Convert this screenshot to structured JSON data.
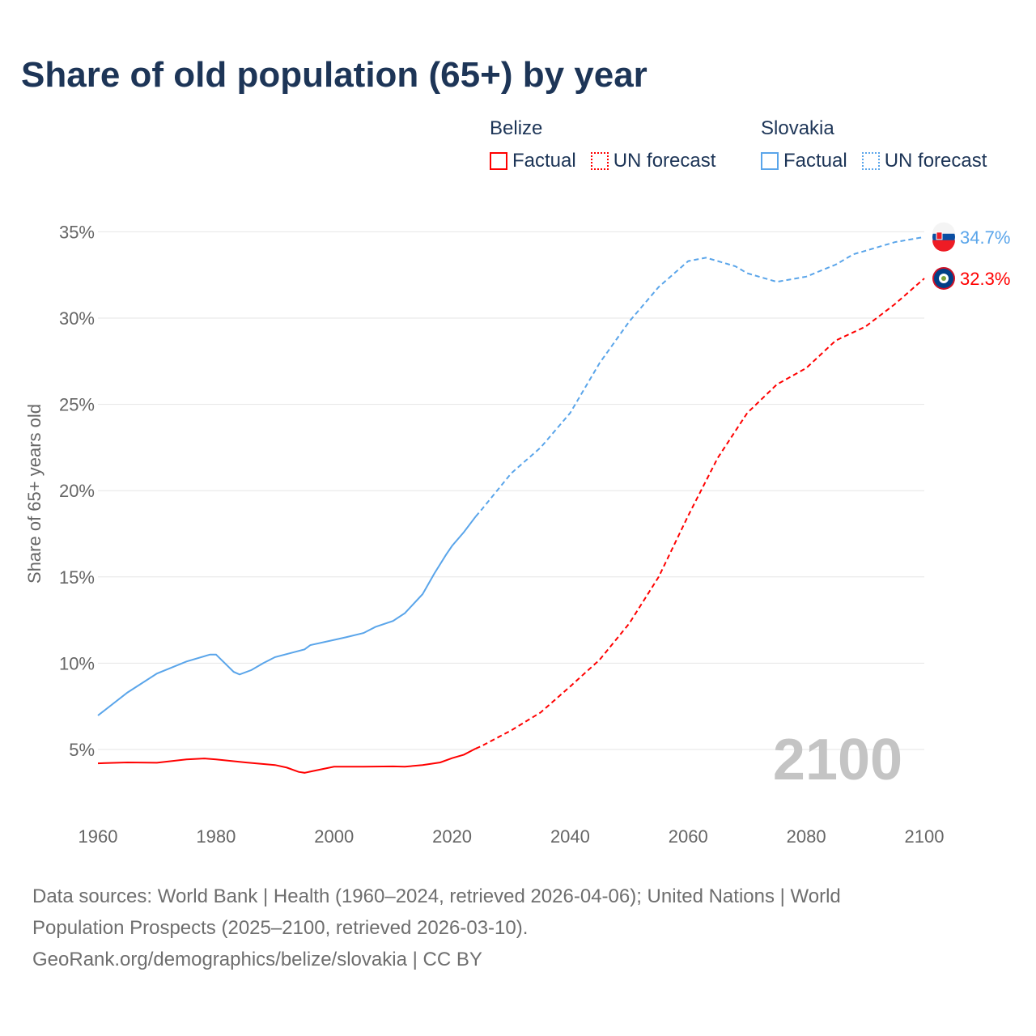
{
  "title": "Share of old population (65+) by year",
  "legend": [
    {
      "country": "Belize",
      "factual": "Factual",
      "forecast": "UN forecast",
      "color": "#ff0000"
    },
    {
      "country": "Slovakia",
      "factual": "Factual",
      "forecast": "UN forecast",
      "color": "#5aa5ea"
    }
  ],
  "year_label": "2100",
  "footer": {
    "line1": "Data sources: World Bank | Health (1960–2024, retrieved 2026-04-06); United Nations | World",
    "line2": "Population Prospects (2025–2100, retrieved 2026-03-10).",
    "line3": "GeoRank.org/demographics/belize/slovakia | CC BY"
  },
  "chart_data": {
    "type": "line",
    "title": "Share of old population (65+) by year",
    "xlabel": "",
    "ylabel": "Share of 65+ years old",
    "xlim": [
      1960,
      2100
    ],
    "ylim": [
      0,
      36
    ],
    "x_ticks": [
      "1960",
      "1980",
      "2000",
      "2020",
      "2040",
      "2060",
      "2080",
      "2100"
    ],
    "y_ticks": [
      "5%",
      "10%",
      "15%",
      "20%",
      "25%",
      "30%",
      "35%"
    ],
    "grid": true,
    "series": [
      {
        "name": "Slovakia",
        "color": "#5aa5ea",
        "end_label": "34.7%",
        "factual": [
          [
            1960,
            6.97
          ],
          [
            1965,
            8.3
          ],
          [
            1970,
            9.4
          ],
          [
            1975,
            10.1
          ],
          [
            1979,
            10.5
          ],
          [
            1980,
            10.5
          ],
          [
            1983,
            9.5
          ],
          [
            1984,
            9.35
          ],
          [
            1986,
            9.6
          ],
          [
            1988,
            10.0
          ],
          [
            1990,
            10.35
          ],
          [
            1995,
            10.8
          ],
          [
            1996,
            11.05
          ],
          [
            2000,
            11.35
          ],
          [
            2002,
            11.5
          ],
          [
            2005,
            11.75
          ],
          [
            2007,
            12.1
          ],
          [
            2010,
            12.45
          ],
          [
            2012,
            12.9
          ],
          [
            2015,
            14.0
          ],
          [
            2017,
            15.2
          ],
          [
            2019,
            16.3
          ],
          [
            2020,
            16.8
          ],
          [
            2022,
            17.6
          ],
          [
            2024,
            18.5
          ]
        ],
        "forecast": [
          [
            2024,
            18.5
          ],
          [
            2025,
            18.9
          ],
          [
            2030,
            21.0
          ],
          [
            2035,
            22.5
          ],
          [
            2040,
            24.5
          ],
          [
            2045,
            27.4
          ],
          [
            2050,
            29.8
          ],
          [
            2055,
            31.8
          ],
          [
            2060,
            33.3
          ],
          [
            2063,
            33.5
          ],
          [
            2065,
            33.3
          ],
          [
            2068,
            33.0
          ],
          [
            2070,
            32.6
          ],
          [
            2075,
            32.1
          ],
          [
            2080,
            32.4
          ],
          [
            2085,
            33.1
          ],
          [
            2088,
            33.7
          ],
          [
            2090,
            33.9
          ],
          [
            2095,
            34.4
          ],
          [
            2100,
            34.7
          ]
        ]
      },
      {
        "name": "Belize",
        "color": "#ff0000",
        "end_label": "32.3%",
        "factual": [
          [
            1960,
            4.2
          ],
          [
            1965,
            4.25
          ],
          [
            1970,
            4.23
          ],
          [
            1975,
            4.43
          ],
          [
            1978,
            4.48
          ],
          [
            1980,
            4.43
          ],
          [
            1985,
            4.25
          ],
          [
            1990,
            4.1
          ],
          [
            1992,
            3.95
          ],
          [
            1994,
            3.7
          ],
          [
            1995,
            3.65
          ],
          [
            2000,
            4.0
          ],
          [
            2005,
            4.0
          ],
          [
            2010,
            4.02
          ],
          [
            2012,
            4.0
          ],
          [
            2015,
            4.1
          ],
          [
            2018,
            4.25
          ],
          [
            2020,
            4.5
          ],
          [
            2022,
            4.7
          ],
          [
            2024,
            5.05
          ]
        ],
        "forecast": [
          [
            2024,
            5.05
          ],
          [
            2025,
            5.2
          ],
          [
            2030,
            6.1
          ],
          [
            2035,
            7.15
          ],
          [
            2040,
            8.65
          ],
          [
            2045,
            10.2
          ],
          [
            2050,
            12.3
          ],
          [
            2055,
            15.0
          ],
          [
            2060,
            18.55
          ],
          [
            2065,
            21.9
          ],
          [
            2070,
            24.5
          ],
          [
            2075,
            26.15
          ],
          [
            2080,
            27.1
          ],
          [
            2085,
            28.7
          ],
          [
            2090,
            29.5
          ],
          [
            2095,
            30.8
          ],
          [
            2100,
            32.3
          ]
        ]
      }
    ]
  }
}
